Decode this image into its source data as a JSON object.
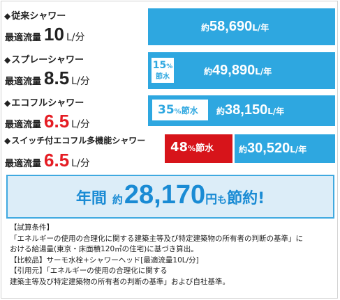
{
  "rows": [
    {
      "name": "従来シャワー",
      "flow_label": "最適流量",
      "flow_value": "10",
      "flow_unit": "L/分",
      "amount_prefix": "約",
      "amount": "58,690",
      "amount_unit": "L/年",
      "save_pct": null,
      "save_label": null
    },
    {
      "name": "スプレーシャワー",
      "flow_label": "最適流量",
      "flow_value": "8.5",
      "flow_unit": "L/分",
      "amount_prefix": "約",
      "amount": "49,890",
      "amount_unit": "L/年",
      "save_pct": "15",
      "save_pct_sign": "%",
      "save_label": "節水"
    },
    {
      "name": "エコフルシャワー",
      "flow_label": "最適流量",
      "flow_value": "6.5",
      "flow_unit": "L/分",
      "amount_prefix": "約",
      "amount": "38,150",
      "amount_unit": "L/年",
      "save_pct": "35",
      "save_pct_sign": "%",
      "save_label": "節水"
    },
    {
      "name": "スイッチ付エコフル多機能シャワー",
      "flow_label": "最適流量",
      "flow_value": "6.5",
      "flow_unit": "L/分",
      "amount_prefix": "約",
      "amount": "30,520",
      "amount_unit": "L/年",
      "save_pct": "48",
      "save_pct_sign": "%",
      "save_label": "節水"
    }
  ],
  "diamond": "◆",
  "summary": {
    "annual": "年間",
    "approx": "約",
    "amount": "28,170",
    "yen": "円",
    "mo": "も",
    "saving": "節約!"
  },
  "notes": [
    "【試算条件】",
    "「エネルギーの使用の合理化に関する建築主等及び特定建築物の所有者の判断の基準」に",
    "おける給湯量(東京・床面積120㎡の住宅)に基づき算出。",
    "【比較品】サーモ水栓+シャワーヘッド[最適流量10L/分]",
    "【引用元】「エネルギーの使用の合理化に関する",
    "建築主等及び特定建築物の所有者の判断の基準」および自社基準。"
  ],
  "colors": {
    "blue": "#2ea7e0",
    "red": "#d7141a",
    "summary_bg": "#dcedf8"
  }
}
